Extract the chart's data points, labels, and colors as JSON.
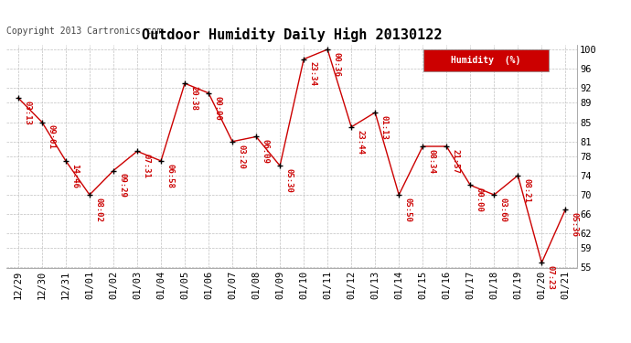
{
  "title": "Outdoor Humidity Daily High 20130122",
  "copyright": "Copyright 2013 Cartronics.com",
  "legend_label": "Humidity  (%)",
  "x_labels": [
    "12/29",
    "12/30",
    "12/31",
    "01/01",
    "01/02",
    "01/03",
    "01/04",
    "01/05",
    "01/06",
    "01/07",
    "01/08",
    "01/09",
    "01/10",
    "01/11",
    "01/12",
    "01/13",
    "01/14",
    "01/15",
    "01/16",
    "01/17",
    "01/18",
    "01/19",
    "01/20",
    "01/21"
  ],
  "y_values": [
    90,
    85,
    77,
    70,
    75,
    79,
    77,
    93,
    91,
    81,
    82,
    76,
    98,
    100,
    84,
    87,
    70,
    80,
    80,
    72,
    70,
    74,
    56,
    67
  ],
  "time_labels": [
    "03:13",
    "09:01",
    "14:46",
    "08:02",
    "09:29",
    "07:31",
    "06:58",
    "20:38",
    "00:00",
    "03:20",
    "06:09",
    "05:30",
    "23:34",
    "00:36",
    "23:44",
    "01:13",
    "05:50",
    "08:34",
    "21:57",
    "00:00",
    "03:60",
    "08:21",
    "07:23",
    "05:36"
  ],
  "ylim": [
    55,
    101
  ],
  "yticks": [
    55,
    59,
    62,
    66,
    70,
    74,
    78,
    81,
    85,
    89,
    92,
    96,
    100
  ],
  "line_color": "#cc0000",
  "marker_color": "#000000",
  "bg_color": "#ffffff",
  "grid_color": "#c0c0c0",
  "title_fontsize": 11,
  "label_fontsize": 6.5,
  "tick_fontsize": 7.5,
  "copyright_fontsize": 7
}
